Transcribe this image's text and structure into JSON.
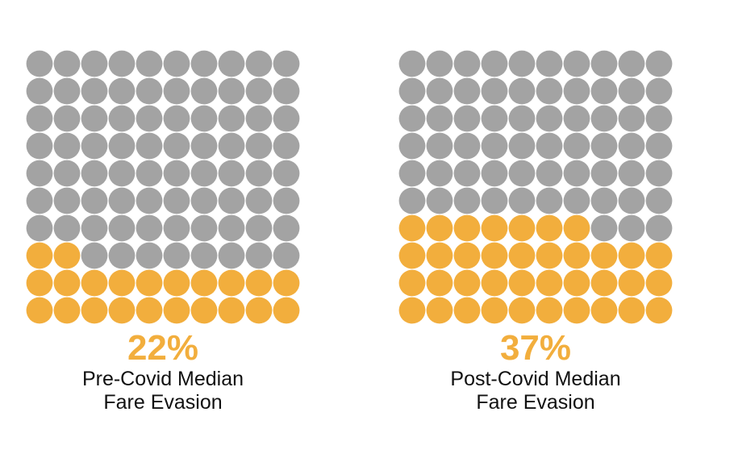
{
  "colors": {
    "highlight": "#f2ae3d",
    "base": "#a3a3a3"
  },
  "chart_data": [
    {
      "type": "waffle",
      "grid": {
        "rows": 10,
        "cols": 10
      },
      "value_percent": 22,
      "value_label": "22%",
      "caption_lines": [
        "Pre-Covid Median",
        "Fare Evasion"
      ]
    },
    {
      "type": "waffle",
      "grid": {
        "rows": 10,
        "cols": 10
      },
      "value_percent": 37,
      "value_label": "37%",
      "caption_lines": [
        "Post-Covid Median",
        "Fare Evasion"
      ]
    }
  ]
}
